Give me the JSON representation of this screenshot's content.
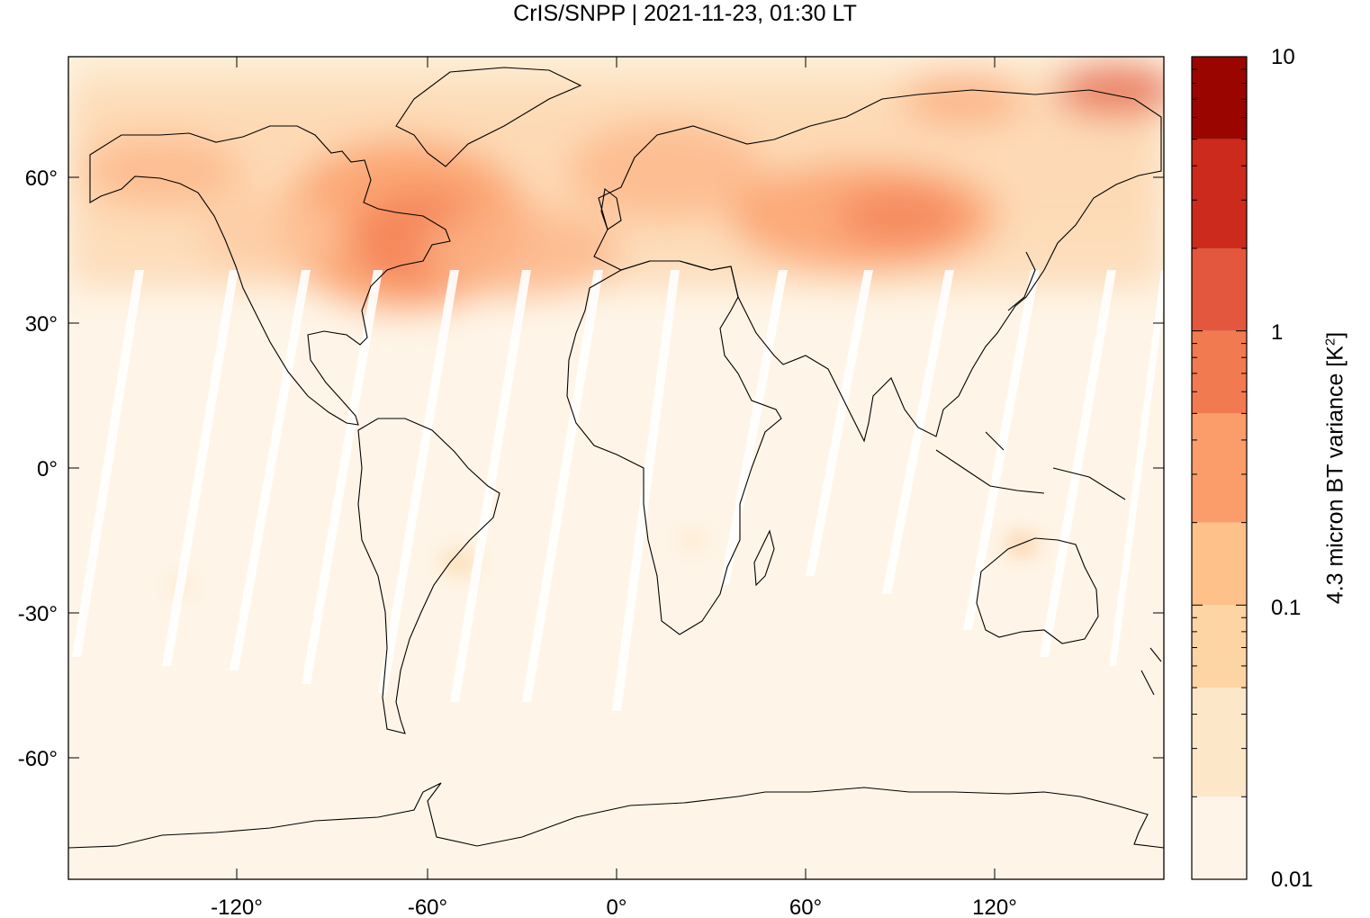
{
  "title": "CrIS/SNPP | 2021-11-23, 01:30 LT",
  "map": {
    "projection": "equirectangular",
    "xaxis_ticks": [
      "-120°",
      "-60°",
      "0°",
      "60°",
      "120°"
    ],
    "yaxis_ticks": [
      "60°",
      "30°",
      "0°",
      "-30°",
      "-60°"
    ],
    "lon_range": [
      -180,
      180
    ],
    "lat_range": [
      -90,
      90
    ]
  },
  "colorbar": {
    "label_main": "4.3 micron BT variance [K",
    "label_sup": "2",
    "label_end": "]",
    "scale": "log",
    "ticks": [
      "10",
      "1",
      "0.1",
      "0.01"
    ],
    "levels": [
      0.01,
      0.02,
      0.05,
      0.1,
      0.2,
      0.5,
      1,
      2,
      5,
      10
    ],
    "colors": [
      "#fef5e8",
      "#fde7c9",
      "#fdd4a4",
      "#fdc189",
      "#fb9d6a",
      "#f27a51",
      "#e3573e",
      "#cc2a1c",
      "#9a0500"
    ]
  },
  "chart_data": {
    "type": "heatmap",
    "title": "CrIS/SNPP | 2021-11-23, 01:30 LT",
    "xlabel": "",
    "ylabel": "",
    "xticks": [
      "-120°",
      "-60°",
      "0°",
      "60°",
      "120°"
    ],
    "yticks": [
      "60°",
      "30°",
      "0°",
      "-30°",
      "-60°"
    ],
    "xlim": [
      -180,
      180
    ],
    "ylim": [
      -90,
      90
    ],
    "colorbar_label": "4.3 micron BT variance [K2]",
    "colorbar_ticks": [
      10,
      1,
      0.1,
      0.01
    ],
    "colorbar_range": [
      0.01,
      10
    ],
    "colorbar_scale": "log"
  }
}
